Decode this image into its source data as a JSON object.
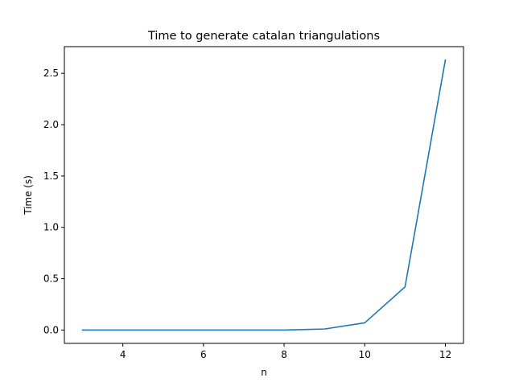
{
  "chart_data": {
    "type": "line",
    "title": "Time to generate catalan triangulations",
    "xlabel": "n",
    "ylabel": "Time (s)",
    "xlim": [
      2.55,
      12.45
    ],
    "ylim": [
      -0.13,
      2.76
    ],
    "xticks": [
      4,
      6,
      8,
      10,
      12
    ],
    "xtick_labels": [
      "4",
      "6",
      "8",
      "10",
      "12"
    ],
    "yticks": [
      0.0,
      0.5,
      1.0,
      1.5,
      2.0,
      2.5
    ],
    "ytick_labels": [
      "0.0",
      "0.5",
      "1.0",
      "1.5",
      "2.0",
      "2.5"
    ],
    "grid": false,
    "series": [
      {
        "color": "#1f77b4",
        "x": [
          3,
          4,
          5,
          6,
          7,
          8,
          9,
          10,
          11,
          12
        ],
        "y": [
          0.0,
          0.0,
          0.0,
          0.0,
          0.0,
          0.0,
          0.01,
          0.07,
          0.42,
          2.63
        ]
      }
    ]
  }
}
